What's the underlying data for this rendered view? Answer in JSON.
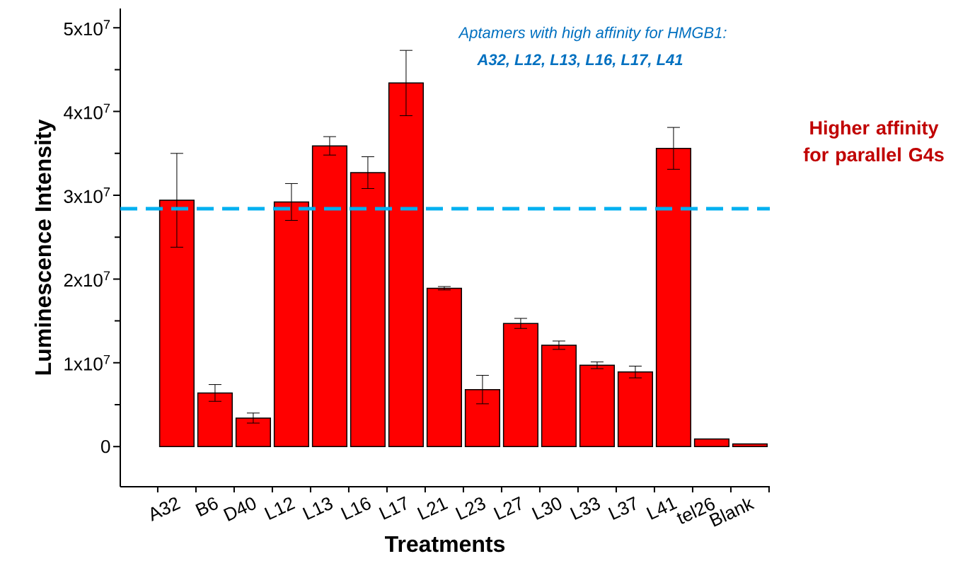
{
  "chart_data": {
    "type": "bar",
    "xlabel": "Treatments",
    "ylabel": "Luminescence Intensity",
    "categories": [
      "A32",
      "B6",
      "D40",
      "L12",
      "L13",
      "L16",
      "L17",
      "L21",
      "L23",
      "L27",
      "L30",
      "L33",
      "L37",
      "L41",
      "tel26",
      "Blank"
    ],
    "values": [
      29400000,
      6400000,
      3400000,
      29200000,
      35900000,
      32700000,
      43400000,
      18900000,
      6800000,
      14700000,
      12100000,
      9700000,
      8900000,
      35600000,
      900000,
      300000
    ],
    "errors": [
      5600000,
      1000000,
      600000,
      2200000,
      1100000,
      1900000,
      3900000,
      200000,
      1700000,
      600000,
      500000,
      400000,
      700000,
      2500000,
      null,
      null
    ],
    "color": "#ff0000",
    "ylim": [
      -4800000,
      52300000
    ],
    "yticks": [
      0,
      {
        "value": 10000000,
        "label": "1x10$^{7}$"
      },
      {
        "value": 20000000,
        "label": "2x10$^{7}$"
      },
      {
        "value": 30000000,
        "label": "3x10$^{7}$"
      },
      {
        "value": 40000000,
        "label": "4x10$^{7}$"
      },
      {
        "value": 50000000,
        "label": "5x10$^{7}$"
      }
    ],
    "ref_lines": [
      {
        "axis": "y",
        "value": 28400000,
        "color": "#00b0f0",
        "line_style": "dashed"
      }
    ],
    "annotations": [
      "Aptamers with high affinity for HMGB1:",
      "A32, L12, L13, L16, L17, L41",
      "Higher affinity for parallel G4s"
    ]
  }
}
